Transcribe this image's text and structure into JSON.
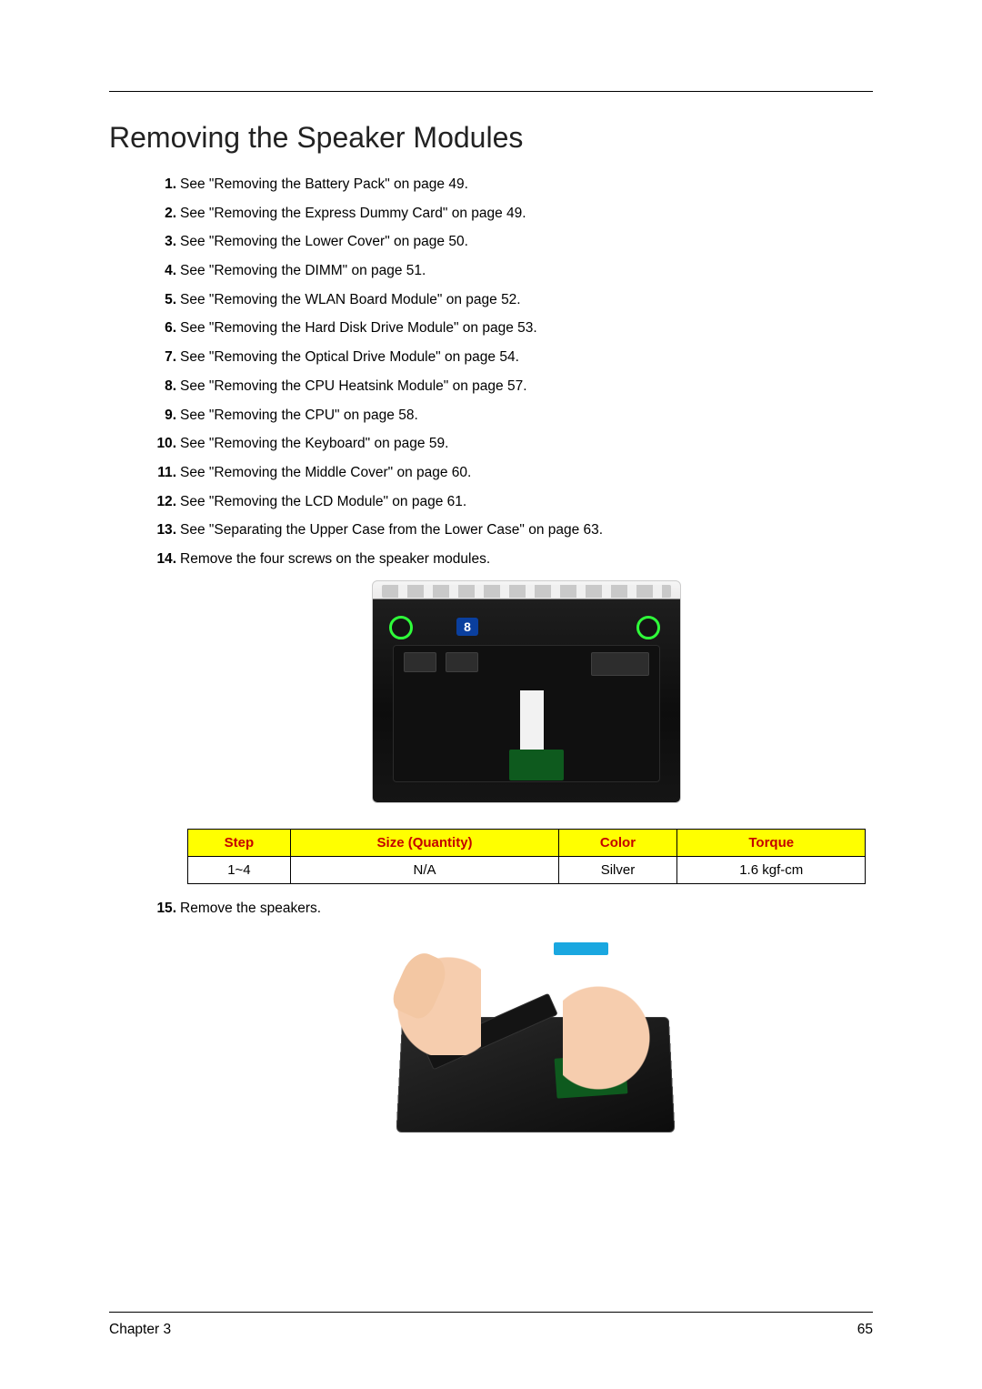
{
  "page": {
    "title": "Removing the Speaker Modules",
    "chapter_label": "Chapter 3",
    "page_number": "65"
  },
  "steps": [
    "See \"Removing the Battery Pack\" on page 49.",
    "See \"Removing the Express Dummy Card\" on page 49.",
    "See \"Removing the Lower Cover\" on page 50.",
    "See \"Removing the DIMM\" on page 51.",
    "See \"Removing the WLAN Board Module\" on page 52.",
    "See \"Removing the Hard Disk Drive Module\" on page 53.",
    "See \"Removing the Optical Drive Module\" on page 54.",
    "See \"Removing the CPU Heatsink Module\" on page 57.",
    "See \"Removing the CPU\" on page 58.",
    "See \"Removing the Keyboard\" on page 59.",
    "See \"Removing the Middle Cover\" on page 60.",
    "See \"Removing the LCD Module\" on page 61.",
    "See \"Separating the Upper Case from the Lower Case\" on page 63.",
    "Remove the four screws on the speaker modules.",
    "Remove the speakers."
  ],
  "figure1": {
    "badge": "8",
    "screw_circles": 2,
    "background_colors": {
      "top_strip": "#ecebeb",
      "body": "#0d0d0d",
      "pcb": "#0e5a1e",
      "ribbon": "#f2f2f2",
      "circle_border": "#2fff3a",
      "badge_bg": "#0a3f9e",
      "badge_fg": "#ffffff"
    }
  },
  "screw_table": {
    "header_bg": "#ffff00",
    "header_fg": "#c40000",
    "border_color": "#000000",
    "columns": [
      "Step",
      "Size (Quantity)",
      "Color",
      "Torque"
    ],
    "rows": [
      [
        "1~4",
        "N/A",
        "Silver",
        "1.6 kgf-cm"
      ]
    ]
  },
  "figure2": {
    "colors": {
      "base": "#0c0c0c",
      "pcb": "#0e5a1e",
      "speaker": "#141414",
      "skin": "#f6cdae",
      "tape": "#1aa7e0"
    }
  }
}
